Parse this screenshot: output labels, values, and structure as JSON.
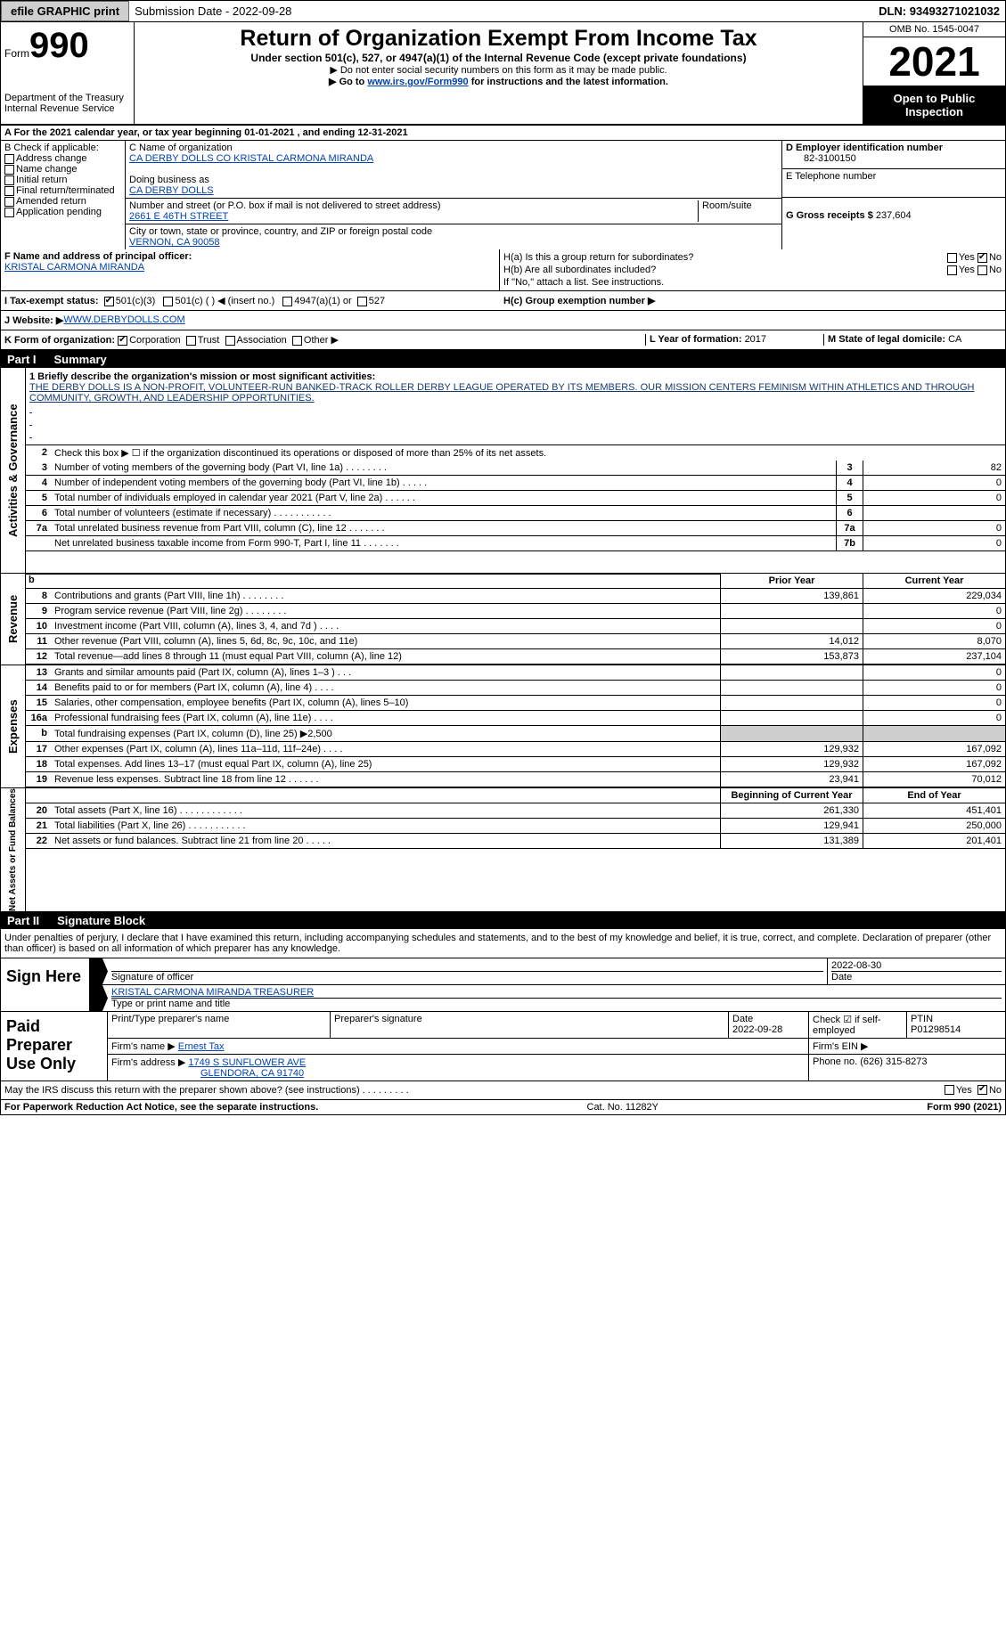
{
  "topbar": {
    "efile": "efile GRAPHIC print",
    "submission_label": "Submission Date - ",
    "submission_date": "2022-09-28",
    "dln_label": "DLN: ",
    "dln": "93493271021032"
  },
  "header": {
    "form_label": "Form",
    "form_num": "990",
    "dept": "Department of the Treasury",
    "irs": "Internal Revenue Service",
    "title": "Return of Organization Exempt From Income Tax",
    "sub": "Under section 501(c), 527, or 4947(a)(1) of the Internal Revenue Code (except private foundations)",
    "sub2a": "▶ Do not enter social security numbers on this form as it may be made public.",
    "sub2b_pre": "▶ Go to ",
    "sub2b_link": "www.irs.gov/Form990",
    "sub2b_post": " for instructions and the latest information.",
    "omb": "OMB No. 1545-0047",
    "year": "2021",
    "open": "Open to Public Inspection"
  },
  "line_a": "A For the 2021 calendar year, or tax year beginning 01-01-2021   , and ending 12-31-2021",
  "b": {
    "label": "B Check if applicable:",
    "opts": [
      "Address change",
      "Name change",
      "Initial return",
      "Final return/terminated",
      "Amended return",
      "Application pending"
    ]
  },
  "c": {
    "name_label": "C Name of organization",
    "name": "CA DERBY DOLLS CO KRISTAL CARMONA MIRANDA",
    "dba_label": "Doing business as",
    "dba": "CA DERBY DOLLS",
    "street_label": "Number and street (or P.O. box if mail is not delivered to street address)",
    "room_label": "Room/suite",
    "street": "2661 E 46TH STREET",
    "city_label": "City or town, state or province, country, and ZIP or foreign postal code",
    "city": "VERNON, CA  90058"
  },
  "d": {
    "label": "D Employer identification number",
    "val": "82-3100150"
  },
  "e": {
    "label": "E Telephone number",
    "val": ""
  },
  "g": {
    "label": "G Gross receipts $ ",
    "val": "237,604"
  },
  "f": {
    "label": "F  Name and address of principal officer:",
    "name": "KRISTAL CARMONA MIRANDA"
  },
  "h": {
    "a": "H(a)  Is this a group return for subordinates?",
    "b": "H(b)  Are all subordinates included?",
    "note": "If \"No,\" attach a list. See instructions.",
    "c": "H(c)  Group exemption number ▶",
    "yes": "Yes",
    "no": "No"
  },
  "i": {
    "label": "I  Tax-exempt status:",
    "o1": "501(c)(3)",
    "o2": "501(c) (   ) ◀ (insert no.)",
    "o3": "4947(a)(1) or",
    "o4": "527"
  },
  "j": {
    "label": "J  Website: ▶ ",
    "val": "WWW.DERBYDOLLS.COM"
  },
  "k": {
    "label": "K Form of organization: ",
    "o1": "Corporation",
    "o2": "Trust",
    "o3": "Association",
    "o4": "Other ▶"
  },
  "l": {
    "label": "L Year of formation: ",
    "val": "2017"
  },
  "m": {
    "label": "M State of legal domicile: ",
    "val": "CA"
  },
  "part1": {
    "num": "Part I",
    "title": "Summary"
  },
  "mission": {
    "q": "1  Briefly describe the organization's mission or most significant activities:",
    "txt": "THE DERBY DOLLS IS A NON-PROFIT, VOLUNTEER-RUN BANKED-TRACK ROLLER DERBY LEAGUE OPERATED BY ITS MEMBERS. OUR MISSION CENTERS FEMINISM WITHIN ATHLETICS AND THROUGH COMMUNITY, GROWTH, AND LEADERSHIP OPPORTUNITIES."
  },
  "gov": {
    "tab": "Activities & Governance",
    "q2": "Check this box ▶ ☐  if the organization discontinued its operations or disposed of more than 25% of its net assets.",
    "rows": [
      {
        "n": "3",
        "t": "Number of voting members of the governing body (Part VI, line 1a)  .    .    .    .    .    .    .    .",
        "b": "3",
        "v": "82"
      },
      {
        "n": "4",
        "t": "Number of independent voting members of the governing body (Part VI, line 1b)  .    .    .    .    .",
        "b": "4",
        "v": "0"
      },
      {
        "n": "5",
        "t": "Total number of individuals employed in calendar year 2021 (Part V, line 2a)  .    .    .    .    .    .",
        "b": "5",
        "v": "0"
      },
      {
        "n": "6",
        "t": "Total number of volunteers (estimate if necessary)    .    .    .    .    .    .    .    .    .    .    .",
        "b": "6",
        "v": ""
      },
      {
        "n": "7a",
        "t": "Total unrelated business revenue from Part VIII, column (C), line 12   .    .    .    .    .    .    .",
        "b": "7a",
        "v": "0"
      },
      {
        "n": "",
        "t": "Net unrelated business taxable income from Form 990-T, Part I, line 11  .    .    .    .    .    .    .",
        "b": "7b",
        "v": "0"
      }
    ]
  },
  "py_hdr": {
    "py": "Prior Year",
    "cy": "Current Year"
  },
  "rev": {
    "tab": "Revenue",
    "rows": [
      {
        "n": "8",
        "t": "Contributions and grants (Part VIII, line 1h)   .    .    .    .    .    .    .    .",
        "py": "139,861",
        "cy": "229,034"
      },
      {
        "n": "9",
        "t": "Program service revenue (Part VIII, line 2g)   .    .    .    .    .    .    .    .",
        "py": "",
        "cy": "0"
      },
      {
        "n": "10",
        "t": "Investment income (Part VIII, column (A), lines 3, 4, and 7d )   .    .    .    .",
        "py": "",
        "cy": "0"
      },
      {
        "n": "11",
        "t": "Other revenue (Part VIII, column (A), lines 5, 6d, 8c, 9c, 10c, and 11e)",
        "py": "14,012",
        "cy": "8,070"
      },
      {
        "n": "12",
        "t": "Total revenue—add lines 8 through 11 (must equal Part VIII, column (A), line 12)",
        "py": "153,873",
        "cy": "237,104"
      }
    ]
  },
  "exp": {
    "tab": "Expenses",
    "rows": [
      {
        "n": "13",
        "t": "Grants and similar amounts paid (Part IX, column (A), lines 1–3 )  .    .    .",
        "py": "",
        "cy": "0"
      },
      {
        "n": "14",
        "t": "Benefits paid to or for members (Part IX, column (A), line 4)  .    .    .    .",
        "py": "",
        "cy": "0"
      },
      {
        "n": "15",
        "t": "Salaries, other compensation, employee benefits (Part IX, column (A), lines 5–10)",
        "py": "",
        "cy": "0"
      },
      {
        "n": "16a",
        "t": "Professional fundraising fees (Part IX, column (A), line 11e)  .    .    .    .",
        "py": "",
        "cy": "0"
      },
      {
        "n": "b",
        "t": "Total fundraising expenses (Part IX, column (D), line 25) ▶2,500",
        "py": "shade",
        "cy": "shade"
      },
      {
        "n": "17",
        "t": "Other expenses (Part IX, column (A), lines 11a–11d, 11f–24e)  .    .    .    .",
        "py": "129,932",
        "cy": "167,092"
      },
      {
        "n": "18",
        "t": "Total expenses. Add lines 13–17 (must equal Part IX, column (A), line 25)",
        "py": "129,932",
        "cy": "167,092"
      },
      {
        "n": "19",
        "t": "Revenue less expenses. Subtract line 18 from line 12  .    .    .    .    .    .",
        "py": "23,941",
        "cy": "70,012"
      }
    ]
  },
  "bal_hdr": {
    "py": "Beginning of Current Year",
    "cy": "End of Year"
  },
  "bal": {
    "tab": "Net Assets or Fund Balances",
    "rows": [
      {
        "n": "20",
        "t": "Total assets (Part X, line 16)  .    .    .    .    .    .    .    .    .    .    .    .",
        "py": "261,330",
        "cy": "451,401"
      },
      {
        "n": "21",
        "t": "Total liabilities (Part X, line 26)  .    .    .    .    .    .    .    .    .    .    .",
        "py": "129,941",
        "cy": "250,000"
      },
      {
        "n": "22",
        "t": "Net assets or fund balances. Subtract line 21 from line 20  .    .    .    .    .",
        "py": "131,389",
        "cy": "201,401"
      }
    ]
  },
  "part2": {
    "num": "Part II",
    "title": "Signature Block"
  },
  "sig": {
    "intro": "Under penalties of perjury, I declare that I have examined this return, including accompanying schedules and statements, and to the best of my knowledge and belief, it is true, correct, and complete. Declaration of preparer (other than officer) is based on all information of which preparer has any knowledge.",
    "here": "Sign Here",
    "off_sig": "Signature of officer",
    "date": "2022-08-30",
    "date_lbl": "Date",
    "name": "KRISTAL CARMONA MIRANDA  TREASURER",
    "name_lbl": "Type or print name and title"
  },
  "prep": {
    "left": "Paid Preparer Use Only",
    "h_name": "Print/Type preparer's name",
    "h_sig": "Preparer's signature",
    "h_date": "Date",
    "date": "2022-09-28",
    "h_check": "Check ☑ if self-employed",
    "h_ptin": "PTIN",
    "ptin": "P01298514",
    "firm_lbl": "Firm's name    ▶ ",
    "firm": "Ernest Tax",
    "ein_lbl": "Firm's EIN ▶",
    "addr_lbl": "Firm's address ▶ ",
    "addr1": "1749 S SUNFLOWER AVE",
    "addr2": "GLENDORA, CA  91740",
    "phone_lbl": "Phone no. ",
    "phone": "(626) 315-8273"
  },
  "may": {
    "txt": "May the IRS discuss this return with the preparer shown above? (see instructions)  .    .    .    .    .    .    .    .    .",
    "yes": "Yes",
    "no": "No"
  },
  "footer": {
    "pra": "For Paperwork Reduction Act Notice, see the separate instructions.",
    "cat": "Cat. No. 11282Y",
    "form": "Form 990 (2021)"
  }
}
